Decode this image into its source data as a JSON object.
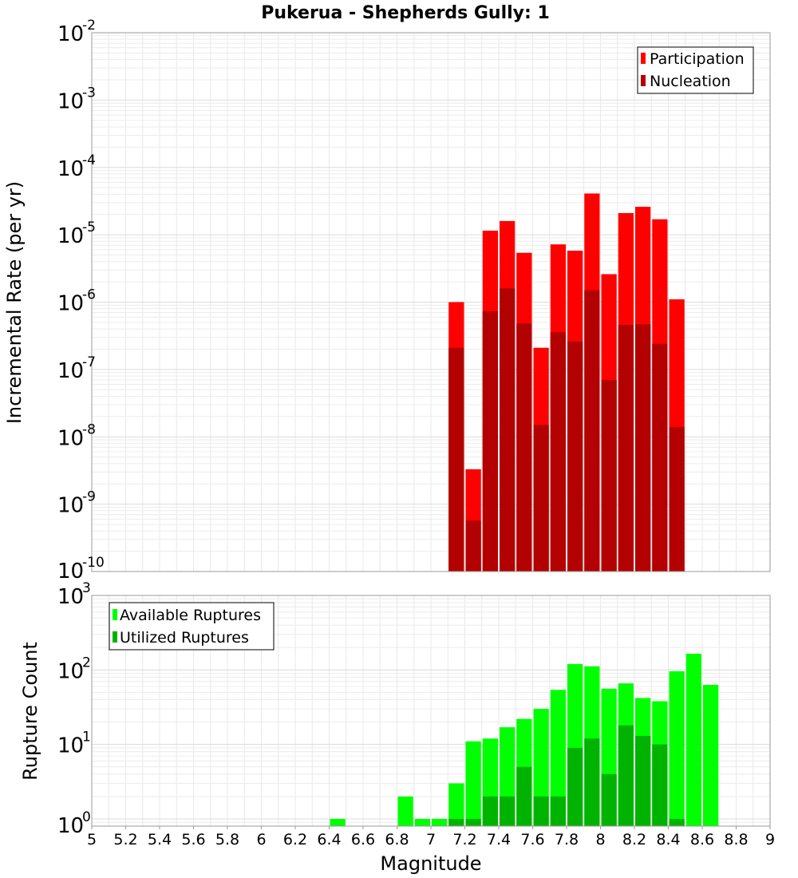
{
  "title": "Pukerua - Shepherds Gully: 1",
  "chart_data": [
    {
      "type": "bar",
      "ylabel": "Incremental Rate (per yr)",
      "yscale": "log",
      "ylim": [
        1e-10,
        0.01
      ],
      "xlim": [
        5,
        9
      ],
      "grid": true,
      "legend_position": "top-right",
      "series": [
        {
          "name": "Participation",
          "color": "#ff0000",
          "x": [
            7.15,
            7.25,
            7.35,
            7.45,
            7.55,
            7.65,
            7.75,
            7.85,
            7.95,
            8.05,
            8.15,
            8.25,
            8.35,
            8.45
          ],
          "values": [
            1e-06,
            3.3e-09,
            1.15e-05,
            1.6e-05,
            5.4e-06,
            2.1e-07,
            7.2e-06,
            5.8e-06,
            4.1e-05,
            2.6e-06,
            2.1e-05,
            2.6e-05,
            1.7e-05,
            1.1e-06
          ]
        },
        {
          "name": "Nucleation",
          "color": "#b30000",
          "x": [
            7.15,
            7.25,
            7.35,
            7.45,
            7.55,
            7.65,
            7.75,
            7.85,
            7.95,
            8.05,
            8.15,
            8.25,
            8.35,
            8.45
          ],
          "values": [
            2.1e-07,
            5.7e-10,
            7.3e-07,
            1.6e-06,
            4.8e-07,
            1.5e-08,
            3.6e-07,
            2.6e-07,
            1.5e-06,
            7e-08,
            4.6e-07,
            4.7e-07,
            2.4e-07,
            1.4e-08
          ]
        }
      ]
    },
    {
      "type": "bar",
      "xlabel": "Magnitude",
      "ylabel": "Rupture Count",
      "yscale": "log",
      "ylim": [
        0.8,
        1000
      ],
      "xlim": [
        5,
        9
      ],
      "grid": true,
      "legend_position": "top-left",
      "series": [
        {
          "name": "Available Ruptures",
          "color": "#00ff00",
          "x": [
            6.45,
            6.85,
            6.95,
            7.05,
            7.15,
            7.25,
            7.35,
            7.45,
            7.55,
            7.65,
            7.75,
            7.85,
            7.95,
            8.05,
            8.15,
            8.25,
            8.35,
            8.45,
            8.55,
            8.65
          ],
          "values": [
            1,
            2,
            1,
            1,
            3,
            11,
            12,
            17,
            22,
            30,
            54,
            120,
            112,
            56,
            66,
            42,
            38,
            96,
            165,
            63
          ]
        },
        {
          "name": "Utilized Ruptures",
          "color": "#00b300",
          "x": [
            7.15,
            7.25,
            7.35,
            7.45,
            7.55,
            7.65,
            7.75,
            7.85,
            7.95,
            8.05,
            8.15,
            8.25,
            8.35,
            8.45
          ],
          "values": [
            1,
            1,
            2,
            2,
            5,
            2,
            2,
            9,
            12,
            4,
            18,
            13,
            10,
            1
          ]
        }
      ]
    }
  ],
  "x_ticks": [
    "5",
    "5.2",
    "5.4",
    "5.6",
    "5.8",
    "6",
    "6.2",
    "6.4",
    "6.6",
    "6.8",
    "7",
    "7.2",
    "7.4",
    "7.6",
    "7.8",
    "8",
    "8.2",
    "8.4",
    "8.6",
    "8.8",
    "9"
  ],
  "top_y_ticks": [
    {
      "base": "10",
      "exp": "-10"
    },
    {
      "base": "10",
      "exp": "-9"
    },
    {
      "base": "10",
      "exp": "-8"
    },
    {
      "base": "10",
      "exp": "-7"
    },
    {
      "base": "10",
      "exp": "-6"
    },
    {
      "base": "10",
      "exp": "-5"
    },
    {
      "base": "10",
      "exp": "-4"
    },
    {
      "base": "10",
      "exp": "-3"
    },
    {
      "base": "10",
      "exp": "-2"
    }
  ],
  "bottom_y_ticks": [
    {
      "base": "10",
      "exp": "0"
    },
    {
      "base": "10",
      "exp": "1"
    },
    {
      "base": "10",
      "exp": "2"
    },
    {
      "base": "10",
      "exp": "3"
    }
  ]
}
